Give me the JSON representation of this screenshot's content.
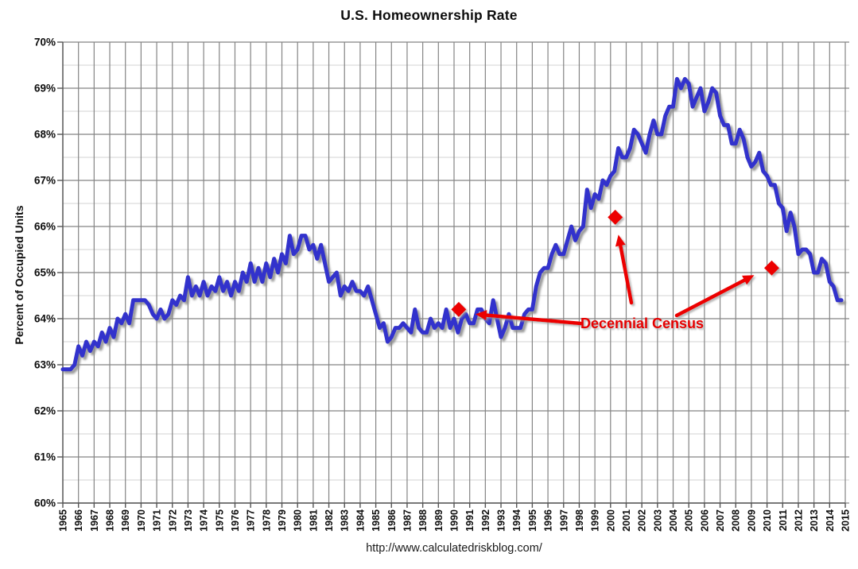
{
  "footer_url": "http://www.calculatedriskblog.com/",
  "annotation": {
    "label": "Decennial Census"
  },
  "colors": {
    "line": "#3333cc",
    "census": "#ec0000",
    "grid_major": "#848484",
    "grid_minor": "#dcdcdc",
    "axis": "#555555",
    "text": "#0d0d0d"
  },
  "chart_data": {
    "type": "line",
    "title": "U.S. Homeownership Rate",
    "xlabel": "",
    "ylabel": "Percent of Occupied Units",
    "xlim": [
      1965,
      2015
    ],
    "ylim": [
      60,
      70
    ],
    "grid": "vertical yearly + horizontal major 1% / minor 0.5%",
    "legend_position": "none",
    "y_tick_labels": [
      "60%",
      "61%",
      "62%",
      "63%",
      "64%",
      "65%",
      "66%",
      "67%",
      "68%",
      "69%",
      "70%"
    ],
    "x_tick_labels": [
      1965,
      1966,
      1967,
      1968,
      1969,
      1970,
      1971,
      1972,
      1973,
      1974,
      1975,
      1976,
      1977,
      1978,
      1979,
      1980,
      1981,
      1982,
      1983,
      1984,
      1985,
      1986,
      1987,
      1988,
      1989,
      1990,
      1991,
      1992,
      1993,
      1994,
      1995,
      1996,
      1997,
      1998,
      1999,
      2000,
      2001,
      2002,
      2003,
      2004,
      2005,
      2006,
      2007,
      2008,
      2009,
      2010,
      2011,
      2012,
      2013,
      2014,
      2015
    ],
    "series": [
      {
        "name": "U.S. Homeownership Rate (quarterly, percent of occupied units)",
        "x_start": 1965,
        "x_step": 0.25,
        "values": [
          62.9,
          62.9,
          62.9,
          63.0,
          63.4,
          63.2,
          63.5,
          63.3,
          63.5,
          63.4,
          63.7,
          63.5,
          63.8,
          63.6,
          64.0,
          63.9,
          64.1,
          63.9,
          64.4,
          64.4,
          64.4,
          64.4,
          64.3,
          64.1,
          64.0,
          64.2,
          64.0,
          64.1,
          64.4,
          64.3,
          64.5,
          64.4,
          64.9,
          64.5,
          64.7,
          64.5,
          64.8,
          64.5,
          64.7,
          64.6,
          64.9,
          64.6,
          64.8,
          64.5,
          64.8,
          64.6,
          65.0,
          64.8,
          65.2,
          64.8,
          65.1,
          64.8,
          65.2,
          64.9,
          65.3,
          65.0,
          65.4,
          65.2,
          65.8,
          65.4,
          65.5,
          65.8,
          65.8,
          65.5,
          65.6,
          65.3,
          65.6,
          65.2,
          64.8,
          64.9,
          65.0,
          64.5,
          64.7,
          64.6,
          64.8,
          64.6,
          64.6,
          64.5,
          64.7,
          64.4,
          64.1,
          63.8,
          63.9,
          63.5,
          63.6,
          63.8,
          63.8,
          63.9,
          63.8,
          63.7,
          64.2,
          63.8,
          63.7,
          63.7,
          64.0,
          63.8,
          63.9,
          63.8,
          64.2,
          63.8,
          64.0,
          63.7,
          64.0,
          64.1,
          63.9,
          63.9,
          64.2,
          64.2,
          64.0,
          63.9,
          64.4,
          64.0,
          63.6,
          63.8,
          64.1,
          63.8,
          63.8,
          63.8,
          64.1,
          64.2,
          64.2,
          64.7,
          65.0,
          65.1,
          65.1,
          65.4,
          65.6,
          65.4,
          65.4,
          65.7,
          66.0,
          65.7,
          65.9,
          66.0,
          66.8,
          66.4,
          66.7,
          66.6,
          67.0,
          66.9,
          67.1,
          67.2,
          67.7,
          67.5,
          67.5,
          67.7,
          68.1,
          68.0,
          67.8,
          67.6,
          68.0,
          68.3,
          68.0,
          68.0,
          68.4,
          68.6,
          68.6,
          69.2,
          69.0,
          69.2,
          69.1,
          68.6,
          68.8,
          69.0,
          68.5,
          68.7,
          69.0,
          68.9,
          68.4,
          68.2,
          68.2,
          67.8,
          67.8,
          68.1,
          67.9,
          67.5,
          67.3,
          67.4,
          67.6,
          67.2,
          67.1,
          66.9,
          66.9,
          66.5,
          66.4,
          65.9,
          66.3,
          66.0,
          65.4,
          65.5,
          65.5,
          65.4,
          65.0,
          65.0,
          65.3,
          65.2,
          64.8,
          64.7,
          64.4,
          64.4
        ]
      }
    ],
    "census_points": {
      "name": "Decennial Census",
      "points": [
        {
          "x": 1990.3,
          "y": 64.2
        },
        {
          "x": 2000.3,
          "y": 66.2
        },
        {
          "x": 2010.3,
          "y": 65.1
        }
      ]
    }
  }
}
